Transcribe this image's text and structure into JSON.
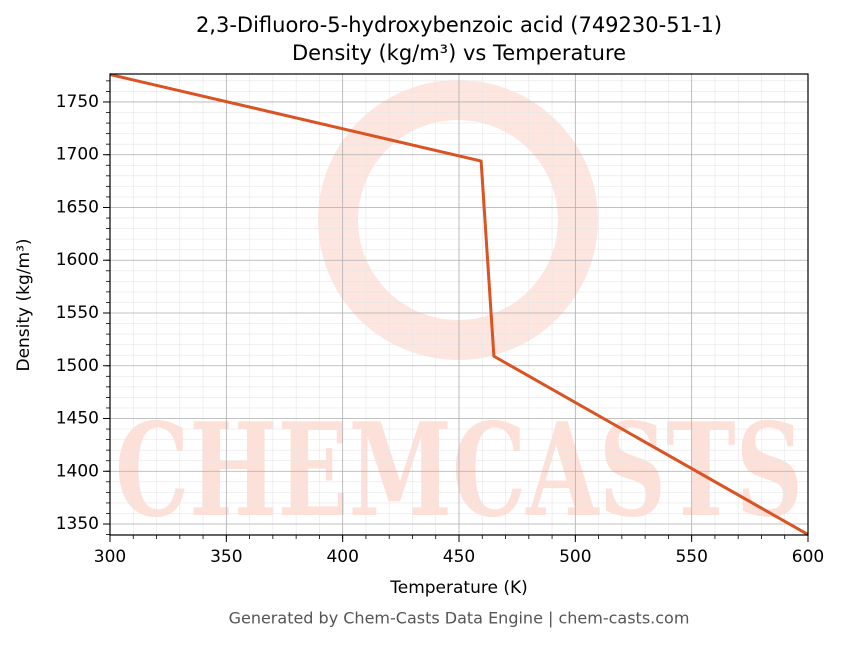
{
  "chart_data": {
    "type": "line",
    "title": "2,3-Difluoro-5-hydroxybenzoic acid (749230-51-1)",
    "subtitle": "Density (kg/m³) vs Temperature",
    "x_label": "Temperature (K)",
    "y_label": "Density (kg/m³)",
    "watermark": "CHEMCASTS",
    "footer": "Generated by Chem-Casts Data Engine | chem-casts.com",
    "x": [
      300,
      459.5,
      465,
      600
    ],
    "series": [
      {
        "name": "Density",
        "color": "#d95323",
        "values": [
          1776,
          1694,
          1509,
          1340
        ]
      }
    ],
    "xlim": [
      300,
      600
    ],
    "ylim": [
      1339.6,
      1776.5
    ],
    "xticks": [
      300,
      350,
      400,
      450,
      500,
      550,
      600
    ],
    "yticks": [
      1350,
      1400,
      1450,
      1500,
      1550,
      1600,
      1650,
      1700,
      1750
    ],
    "grid": true,
    "minor_grid": true
  }
}
